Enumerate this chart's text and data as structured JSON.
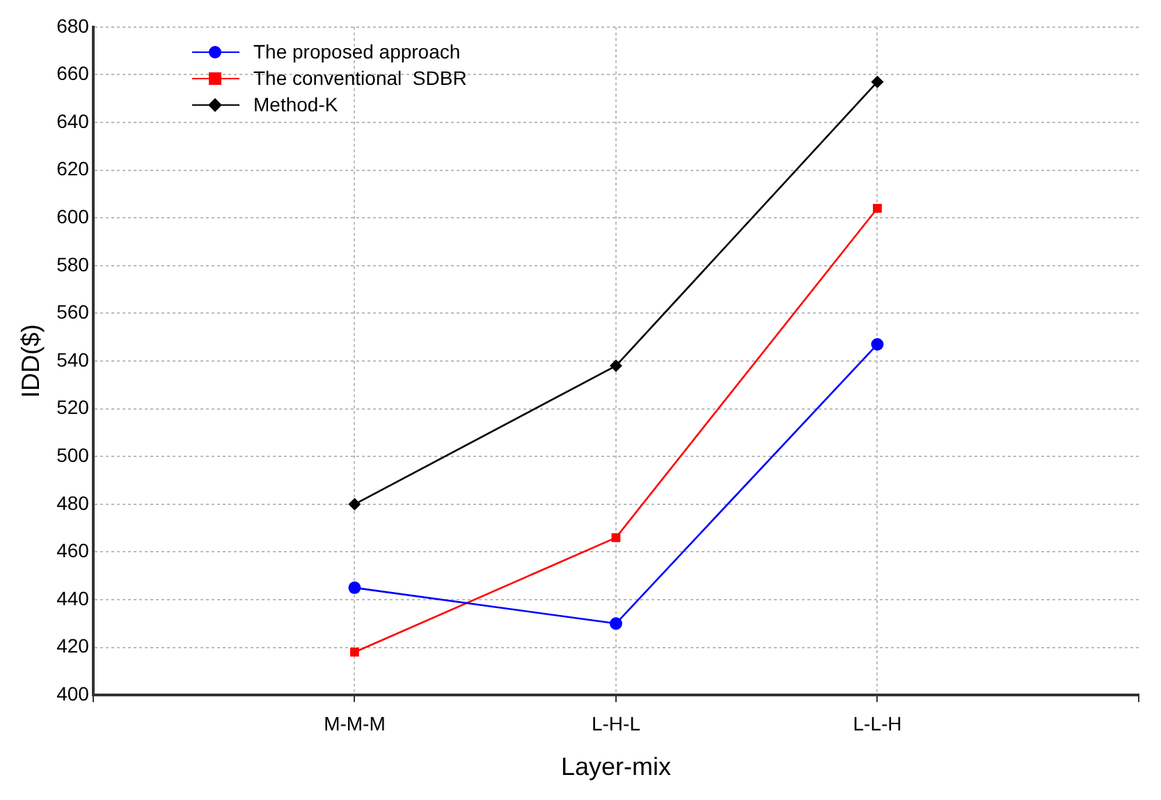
{
  "chart_data": {
    "type": "line",
    "xlabel": "Layer-mix",
    "ylabel": "IDD($)",
    "categories": [
      null,
      "M-M-M",
      "L-H-L",
      "L-L-H",
      null
    ],
    "series": [
      {
        "name": "The proposed approach",
        "color": "#0000ff",
        "marker": "circle",
        "values": [
          null,
          445,
          430,
          547,
          null
        ]
      },
      {
        "name": "The conventional  SDBR",
        "color": "#ff0000",
        "marker": "square",
        "values": [
          null,
          418,
          466,
          604,
          null
        ]
      },
      {
        "name": "Method-K",
        "color": "#000000",
        "marker": "diamond",
        "values": [
          null,
          480,
          538,
          657,
          null
        ]
      }
    ],
    "ylim": [
      400,
      680
    ],
    "yticks": [
      400,
      420,
      440,
      460,
      480,
      500,
      520,
      540,
      560,
      580,
      600,
      620,
      640,
      660,
      680
    ],
    "grid": true,
    "legend": "top left",
    "line_style": "solid"
  }
}
